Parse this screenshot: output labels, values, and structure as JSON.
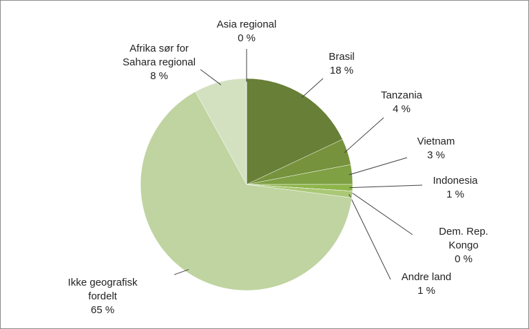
{
  "chart_data": {
    "type": "pie",
    "categories": [
      "Brasil",
      "Tanzania",
      "Vietnam",
      "Indonesia",
      "Dem. Rep. Kongo",
      "Andre land",
      "Ikke geografisk\nfordelt",
      "Afrika sør for\nSahara regional",
      "Asia regional"
    ],
    "values": [
      18,
      4,
      3,
      1,
      0,
      1,
      65,
      8,
      0
    ],
    "value_labels": [
      "18 %",
      "4 %",
      "3 %",
      "1 %",
      "0 %",
      "1 %",
      "65 %",
      "8 %",
      "0 %"
    ],
    "colors": [
      "#677f37",
      "#76923c",
      "#7fa043",
      "#8db54a",
      "#9bbb59",
      "#abc876",
      "#c0d4a1",
      "#d3e1c0",
      "#e2ebd6"
    ]
  }
}
